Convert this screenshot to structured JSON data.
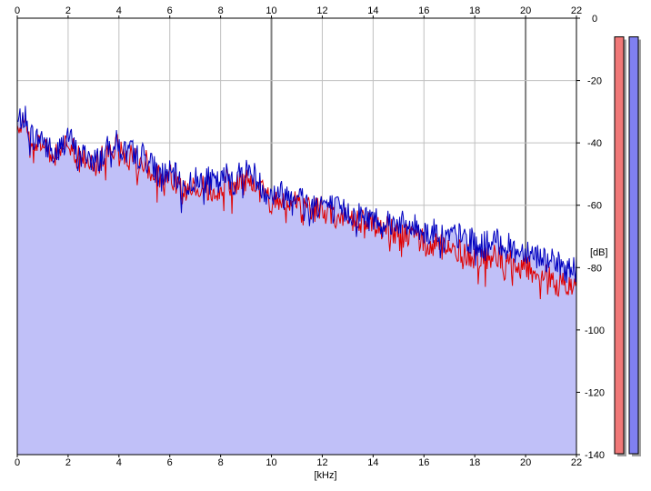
{
  "chart_data": {
    "type": "area",
    "title": "",
    "xlabel": "[kHz]",
    "ylabel": "[dB]",
    "xlim": [
      0,
      22
    ],
    "ylim": [
      -140,
      0
    ],
    "x_ticks": [
      0,
      2,
      4,
      6,
      8,
      10,
      12,
      14,
      16,
      18,
      20,
      22
    ],
    "x_tick_labels": [
      "0",
      "2",
      "4",
      "6",
      "8",
      "10",
      "12",
      "14",
      "16",
      "18",
      "20",
      "22"
    ],
    "y_ticks": [
      0,
      -20,
      -40,
      -60,
      -80,
      -100,
      -120,
      -140
    ],
    "y_tick_labels": [
      "0",
      "-20",
      "-40",
      "-60",
      "-80",
      "-100",
      "-120",
      "-140"
    ],
    "grid": true,
    "legend": "none",
    "series": [
      {
        "color": "#e00000",
        "x": [
          0,
          0.25,
          0.5,
          0.75,
          1,
          1.25,
          1.5,
          1.75,
          2,
          2.25,
          2.5,
          2.75,
          3,
          3.25,
          3.5,
          3.75,
          4,
          4.25,
          4.5,
          4.75,
          5,
          5.25,
          5.5,
          5.75,
          6,
          6.25,
          6.5,
          6.75,
          7,
          7.25,
          7.5,
          7.75,
          8,
          8.25,
          8.5,
          8.75,
          9,
          9.25,
          9.5,
          9.75,
          10,
          10.25,
          10.5,
          10.75,
          11,
          11.25,
          11.5,
          11.75,
          12,
          12.25,
          12.5,
          12.75,
          13,
          13.25,
          13.5,
          13.75,
          14,
          14.25,
          14.5,
          14.75,
          15,
          15.25,
          15.5,
          15.75,
          16,
          16.25,
          16.5,
          16.75,
          17,
          17.25,
          17.5,
          17.75,
          18,
          18.25,
          18.5,
          18.75,
          19,
          19.25,
          19.5,
          19.75,
          20,
          20.25,
          20.5,
          20.75,
          21,
          21.25,
          21.5,
          21.75,
          22
        ],
        "values": [
          -36,
          -31,
          -38,
          -40,
          -39,
          -44,
          -45,
          -42,
          -38,
          -43,
          -46,
          -44,
          -48,
          -46,
          -44,
          -41,
          -42,
          -45,
          -44,
          -46,
          -45,
          -48,
          -50,
          -52,
          -51,
          -53,
          -57,
          -55,
          -54,
          -53,
          -54,
          -55,
          -55,
          -52,
          -54,
          -53,
          -52,
          -51,
          -55,
          -57,
          -60,
          -57,
          -60,
          -58,
          -58,
          -60,
          -62,
          -61,
          -61,
          -62,
          -63,
          -64,
          -64,
          -65,
          -65,
          -67,
          -66,
          -67,
          -67,
          -69,
          -68,
          -70,
          -70,
          -71,
          -72,
          -73,
          -72,
          -74,
          -73,
          -74,
          -75,
          -75,
          -76,
          -77,
          -77,
          -76,
          -77,
          -77,
          -78,
          -80,
          -79,
          -80,
          -82,
          -82,
          -83,
          -85,
          -85,
          -86,
          -85
        ]
      },
      {
        "color": "#0000c0",
        "x": [
          0,
          0.25,
          0.5,
          0.75,
          1,
          1.25,
          1.5,
          1.75,
          2,
          2.25,
          2.5,
          2.75,
          3,
          3.25,
          3.5,
          3.75,
          4,
          4.25,
          4.5,
          4.75,
          5,
          5.25,
          5.5,
          5.75,
          6,
          6.25,
          6.5,
          6.75,
          7,
          7.25,
          7.5,
          7.75,
          8,
          8.25,
          8.5,
          8.75,
          9,
          9.25,
          9.5,
          9.75,
          10,
          10.25,
          10.5,
          10.75,
          11,
          11.25,
          11.5,
          11.75,
          12,
          12.25,
          12.5,
          12.75,
          13,
          13.25,
          13.5,
          13.75,
          14,
          14.25,
          14.5,
          14.75,
          15,
          15.25,
          15.5,
          15.75,
          16,
          16.25,
          16.5,
          16.75,
          17,
          17.25,
          17.5,
          17.75,
          18,
          18.25,
          18.5,
          18.75,
          19,
          19.25,
          19.5,
          19.75,
          20,
          20.25,
          20.5,
          20.75,
          21,
          21.25,
          21.5,
          21.75,
          22
        ],
        "values": [
          -34,
          -30,
          -37,
          -39,
          -38,
          -42,
          -44,
          -41,
          -37,
          -42,
          -45,
          -43,
          -46,
          -45,
          -43,
          -39,
          -41,
          -43,
          -43,
          -44,
          -44,
          -47,
          -49,
          -50,
          -50,
          -51,
          -55,
          -53,
          -52,
          -51,
          -52,
          -53,
          -53,
          -50,
          -51,
          -50,
          -49,
          -49,
          -53,
          -55,
          -57,
          -55,
          -57,
          -56,
          -56,
          -58,
          -60,
          -59,
          -59,
          -60,
          -61,
          -62,
          -62,
          -63,
          -63,
          -64,
          -64,
          -65,
          -64,
          -66,
          -65,
          -67,
          -67,
          -67,
          -68,
          -69,
          -68,
          -70,
          -70,
          -70,
          -70,
          -71,
          -72,
          -73,
          -72,
          -72,
          -72,
          -73,
          -74,
          -75,
          -74,
          -75,
          -76,
          -77,
          -78,
          -79,
          -80,
          -81,
          -80
        ]
      }
    ],
    "level_meters": [
      {
        "color": "#f07878",
        "level_db": -6
      },
      {
        "color": "#8080f0",
        "level_db": -6
      }
    ]
  }
}
